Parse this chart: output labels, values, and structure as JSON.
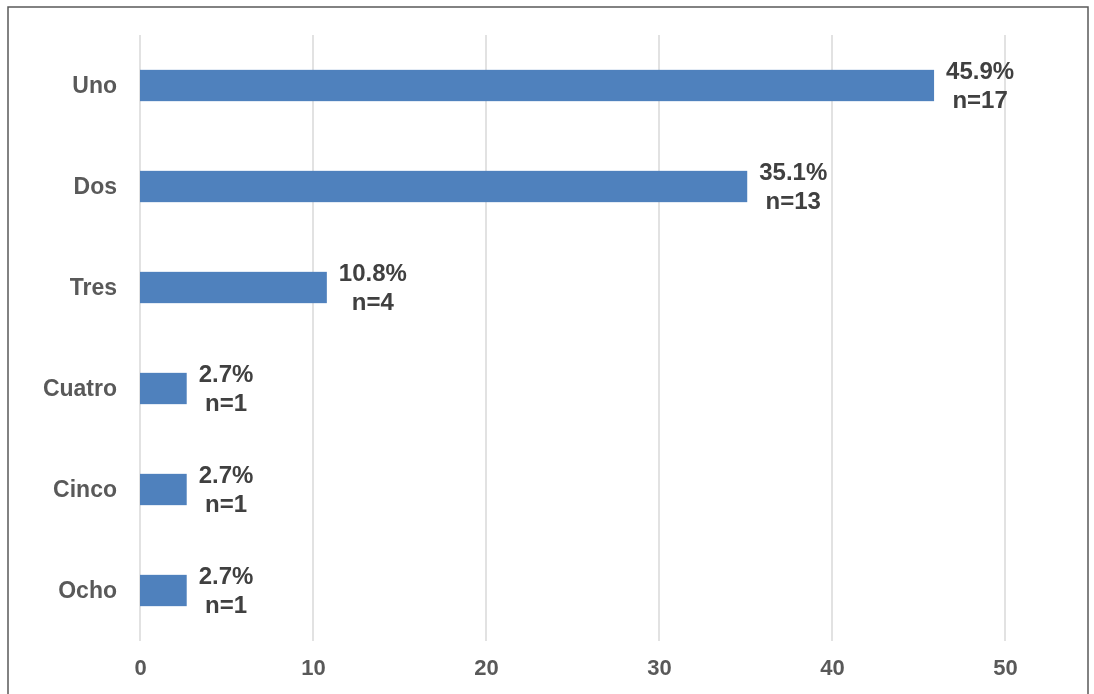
{
  "chart_data": {
    "type": "bar",
    "orientation": "horizontal",
    "categories": [
      "Uno",
      "Dos",
      "Tres",
      "Cuatro",
      "Cinco",
      "Ocho"
    ],
    "values": [
      45.9,
      35.1,
      10.8,
      2.7,
      2.7,
      2.7
    ],
    "value_labels": [
      "45.9%\nn=17",
      "35.1%\nn=13",
      "10.8%\nn=4",
      "2.7%\nn=1",
      "2.7%\nn=1",
      "2.7%\nn=1"
    ],
    "color": "#4f81bd",
    "xlim": [
      0,
      50
    ],
    "xticks": [
      0,
      10,
      20,
      30,
      40,
      50
    ],
    "grid": "x"
  }
}
